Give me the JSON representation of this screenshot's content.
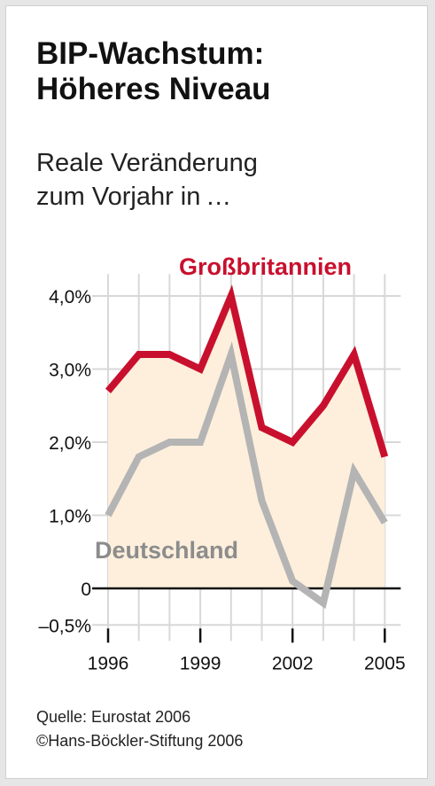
{
  "header": {
    "title_line1": "BIP-Wachstum:",
    "title_line2": "Höheres Niveau",
    "subtitle_line1": "Reale Veränderung",
    "subtitle_line2": "zum Vorjahr in …"
  },
  "footer": {
    "source": "Quelle:  Eurostat 2006",
    "copyright": "©Hans-Böckler-Stiftung 2006"
  },
  "colors": {
    "uk": "#c8102e",
    "de": "#b4b4b4",
    "fill": "#fdefdc"
  },
  "chart_data": {
    "type": "line",
    "x": [
      1996,
      1997,
      1998,
      1999,
      2000,
      2001,
      2002,
      2003,
      2004,
      2005
    ],
    "x_tick_labels": [
      "1996",
      "1999",
      "2002",
      "2005"
    ],
    "y_ticks": [
      {
        "value": 4,
        "label": "4,0%"
      },
      {
        "value": 3,
        "label": "3,0%"
      },
      {
        "value": 2,
        "label": "2,0%"
      },
      {
        "value": 1,
        "label": "1,0%"
      },
      {
        "value": 0,
        "label": "0"
      },
      {
        "value": -0.5,
        "label": "–0,5%"
      }
    ],
    "ylim": [
      -0.5,
      4.3
    ],
    "series": [
      {
        "name": "Großbritannien",
        "values": [
          2.7,
          3.2,
          3.2,
          3.0,
          4.0,
          2.2,
          2.0,
          2.5,
          3.2,
          1.8
        ]
      },
      {
        "name": "Deutschland",
        "values": [
          1.0,
          1.8,
          2.0,
          2.0,
          3.2,
          1.2,
          0.1,
          -0.2,
          1.6,
          0.9
        ]
      }
    ],
    "grid": true
  }
}
